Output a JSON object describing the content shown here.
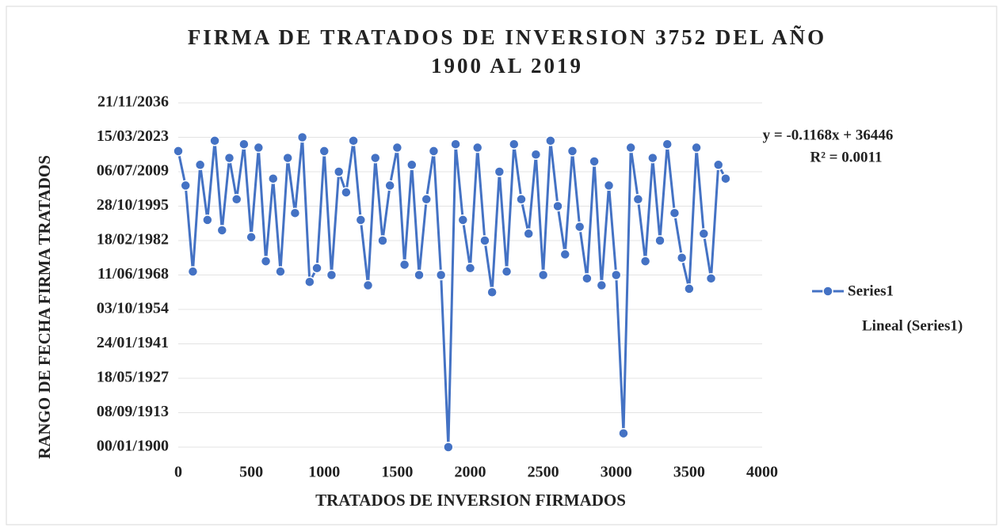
{
  "chart_data": {
    "type": "line",
    "title": [
      "FIRMA DE TRATADOS DE INVERSION 3752 DEL AÑO",
      "1900 AL 2019"
    ],
    "x_label": "TRATADOS DE INVERSION FIRMADOS",
    "y_label": "RANGO DE FECHA FIRMA TRATADOS",
    "annotations": [
      "y = -0.1168x + 36446",
      "R² = 0.0011"
    ],
    "trendline_name": "Lineal (Series1)",
    "xlim": [
      0,
      4000
    ],
    "xticks": [
      0,
      500,
      1000,
      1500,
      2000,
      2500,
      3000,
      3500,
      4000
    ],
    "ylim": [
      0,
      50000
    ],
    "yticks": [
      {
        "value": 0,
        "label": "00/01/1900"
      },
      {
        "value": 5000,
        "label": "08/09/1913"
      },
      {
        "value": 10000,
        "label": "18/05/1927"
      },
      {
        "value": 15000,
        "label": "24/01/1941"
      },
      {
        "value": 20000,
        "label": "03/10/1954"
      },
      {
        "value": 25000,
        "label": "11/06/1968"
      },
      {
        "value": 30000,
        "label": "18/02/1982"
      },
      {
        "value": 35000,
        "label": "28/10/1995"
      },
      {
        "value": 40000,
        "label": "06/07/2009"
      },
      {
        "value": 45000,
        "label": "15/03/2023"
      },
      {
        "value": 50000,
        "label": "21/11/2036"
      }
    ],
    "grid": true,
    "x": [
      0,
      50,
      100,
      150,
      200,
      250,
      300,
      350,
      400,
      450,
      500,
      550,
      600,
      650,
      700,
      750,
      800,
      850,
      900,
      950,
      1000,
      1050,
      1100,
      1150,
      1200,
      1250,
      1300,
      1350,
      1400,
      1450,
      1500,
      1550,
      1600,
      1650,
      1700,
      1750,
      1800,
      1850,
      1900,
      1950,
      2000,
      2050,
      2100,
      2150,
      2200,
      2250,
      2300,
      2350,
      2400,
      2450,
      2500,
      2550,
      2600,
      2650,
      2700,
      2750,
      2800,
      2850,
      2900,
      2950,
      3000,
      3050,
      3100,
      3150,
      3200,
      3250,
      3300,
      3350,
      3400,
      3450,
      3500,
      3550,
      3600,
      3650,
      3700,
      3750
    ],
    "series": [
      {
        "name": "Series1",
        "color": "#4472c4",
        "values": [
          43000,
          38000,
          25500,
          41000,
          33000,
          44500,
          31500,
          42000,
          36000,
          44000,
          30500,
          43500,
          27000,
          39000,
          25500,
          42000,
          34000,
          45000,
          24000,
          26000,
          43000,
          25000,
          40000,
          37000,
          44500,
          33000,
          23500,
          42000,
          30000,
          38000,
          43500,
          26500,
          41000,
          25000,
          36000,
          43000,
          25000,
          0,
          44000,
          33000,
          26000,
          43500,
          30000,
          22500,
          40000,
          25500,
          44000,
          36000,
          31000,
          42500,
          25000,
          44500,
          35000,
          28000,
          43000,
          32000,
          24500,
          41500,
          23500,
          38000,
          25000,
          2000,
          43500,
          36000,
          27000,
          42000,
          30000,
          44000,
          34000,
          27500,
          23000,
          43500,
          31000,
          24500,
          41000,
          39000
        ]
      }
    ]
  }
}
